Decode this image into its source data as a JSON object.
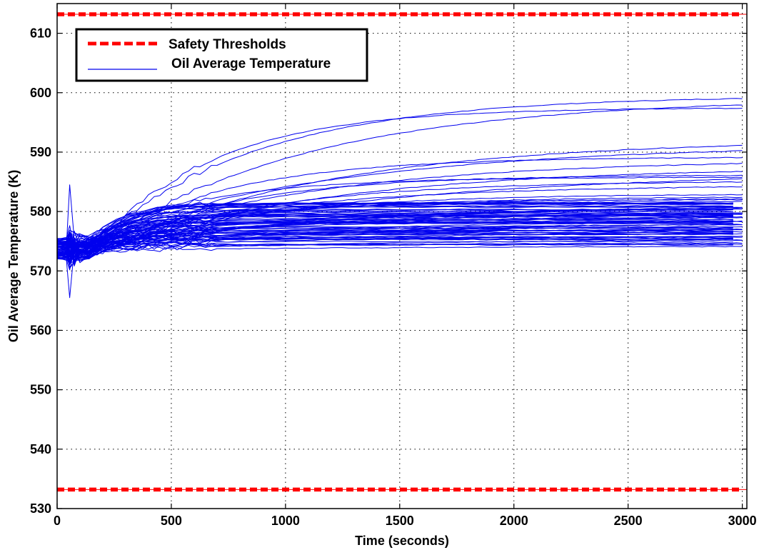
{
  "chart_data": {
    "type": "line",
    "xlabel": "Time (seconds)",
    "ylabel": "Oil Average Temperature (K)",
    "xlim": [
      0,
      3020
    ],
    "ylim": [
      530,
      615
    ],
    "xticks": [
      0,
      500,
      1000,
      1500,
      2000,
      2500,
      3000
    ],
    "yticks": [
      530,
      540,
      550,
      560,
      570,
      580,
      590,
      600,
      610
    ],
    "grid": true,
    "legend_position": "top-left",
    "colors": {
      "threshold": "#ff0000",
      "series": "#0000ee",
      "grid": "#000000"
    },
    "thresholds": {
      "name": "Safety Thresholds",
      "upper": 613.2,
      "lower": 533.2,
      "style": "dashed"
    },
    "series": {
      "name": "Oil Average Temperature",
      "final_values_approx": [
        599.5,
        599.2,
        597.5,
        592.2,
        591.4,
        589.2,
        588.8,
        587.5,
        586.8,
        586.2,
        585.8,
        585.2,
        584.5,
        583.0,
        582.6,
        582.3,
        582.0,
        581.7,
        581.4,
        581.1,
        580.8,
        580.5,
        580.2,
        579.9,
        579.6,
        579.3,
        579.0,
        578.7,
        578.4,
        578.1,
        577.8,
        577.5,
        577.2,
        576.9,
        576.6,
        576.3,
        576.0,
        575.7,
        575.4,
        575.1,
        574.8,
        574.5,
        574.2
      ],
      "initial_range_approx": [
        572.0,
        575.5
      ],
      "transient_peak_approx": 584.5,
      "transient_trough_approx": 565.5,
      "transient_time_approx": 55
    }
  }
}
